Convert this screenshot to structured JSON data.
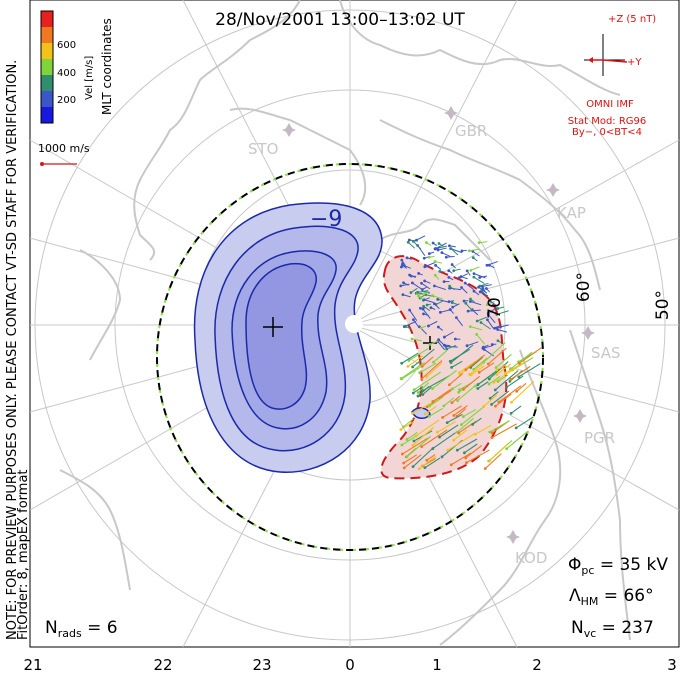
{
  "title": "28/Nov/2001  13:00–13:02  UT",
  "side_note": "NOTE: FOR PREVIEW PURPOSES ONLY. PLEASE CONTACT VT-SD STAFF FOR VERIFICATION.",
  "fit_order": "FitOrder: 8, mapEX format",
  "coords": "MLT coordinates",
  "colorbar": {
    "label": "Vel [m/s]",
    "ticks": [
      "600",
      "400",
      "200"
    ],
    "colors": [
      "#e8201e",
      "#f07820",
      "#f2c21a",
      "#7fd43c",
      "#2e8e6e",
      "#3a56c8",
      "#1818e0"
    ]
  },
  "scale_vector": "1000 m/s",
  "imf": {
    "z_label": "+Z (5 nT)",
    "y_label": "+Y",
    "source": "OMNI IMF",
    "model": "Stat Mod: RG96",
    "condition": "By−, 0<BT<4"
  },
  "latitude_labels": [
    "70",
    "60°",
    "50°"
  ],
  "mlt_labels": [
    "21",
    "22",
    "23",
    "0",
    "1",
    "2",
    "3"
  ],
  "radars": [
    "STO",
    "GBR",
    "KAP",
    "SAS",
    "PGR",
    "KOD"
  ],
  "contour_label": "−9",
  "stats": {
    "phi_symbol": "Φ",
    "phi_sub": "pc",
    "phi_value": " = 35 kV",
    "lambda_symbol": "Λ",
    "lambda_sub": "HM",
    "lambda_value": " = 66°",
    "nvc_symbol": "N",
    "nvc_sub": "vc",
    "nvc_value": " = 237",
    "nrads_symbol": "N",
    "nrads_sub": "rads",
    "nrads_value": " = 6"
  },
  "colors": {
    "land": "#c8c8c8",
    "grid": "#c8c8c8",
    "negative_fill": "#c4c8ee",
    "negative_line": "#1a2aa8",
    "positive_fill": "#f2d6d6",
    "positive_line": "#d01818",
    "imf_red": "#e01010"
  }
}
